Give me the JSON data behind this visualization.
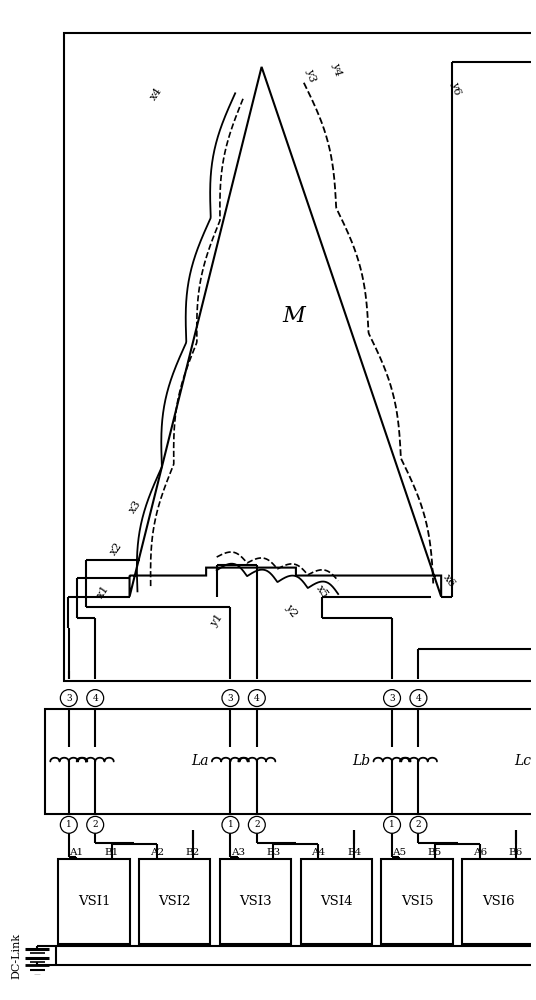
{
  "figsize": [
    5.36,
    10.0
  ],
  "dpi": 100,
  "bg_color": "white",
  "line_color": "black",
  "lw": 1.5,
  "lw_thin": 1.0,
  "lw_thick": 2.0,
  "vsi_labels": [
    "VSI1",
    "VSI2",
    "VSI3",
    "VSI4",
    "VSI5",
    "VSI6"
  ],
  "term_labels": [
    [
      "A1",
      "B1"
    ],
    [
      "A2",
      "B2"
    ],
    [
      "A3",
      "B3"
    ],
    [
      "A4",
      "B4"
    ],
    [
      "A5",
      "B5"
    ],
    [
      "A6",
      "B6"
    ]
  ],
  "filt_labels": [
    "La",
    "Lb",
    "Lc"
  ],
  "motor_label": "M",
  "dclink_label": "DC-Link",
  "node_labels_x": [
    "x1",
    "x2",
    "x3",
    "x4"
  ],
  "node_labels_y": [
    "y1",
    "y2",
    "y3",
    "y4",
    "x5",
    "x6",
    "y6"
  ]
}
